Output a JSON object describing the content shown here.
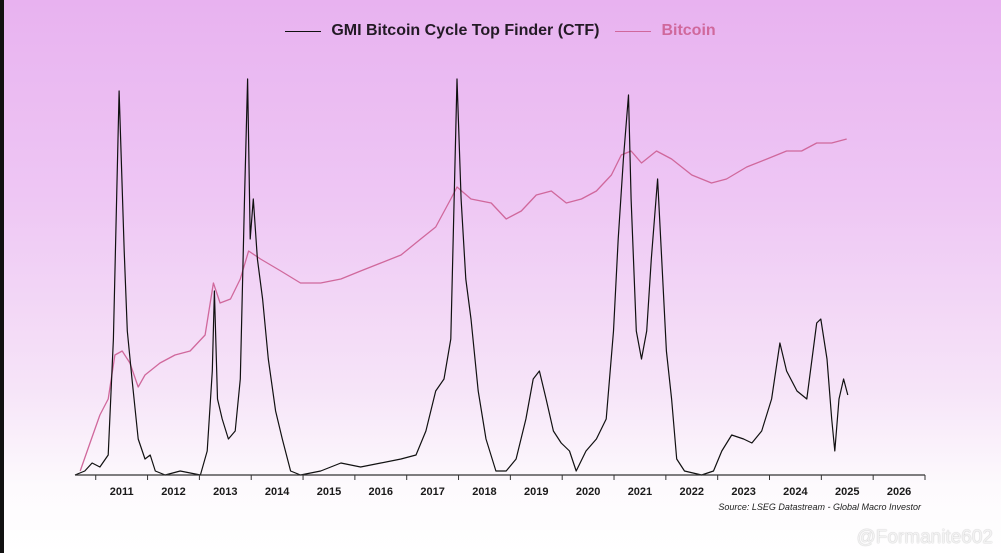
{
  "chart_data": {
    "type": "line",
    "title": "",
    "xlabel": "",
    "ylabel": "",
    "xlim": [
      2010.6,
      2027.0
    ],
    "ylim": [
      0,
      100
    ],
    "grid": false,
    "legend_position": "top-center",
    "x_ticks": [
      "2011",
      "2012",
      "2013",
      "2014",
      "2015",
      "2016",
      "2017",
      "2018",
      "2019",
      "2020",
      "2021",
      "2022",
      "2023",
      "2024",
      "2025",
      "2026"
    ],
    "colors": {
      "ctf": "#111111",
      "bitcoin": "#d0689c"
    },
    "series": [
      {
        "name": "GMI Bitcoin Cycle Top Finder (CTF)",
        "key": "ctf",
        "points": [
          [
            2010.6,
            0
          ],
          [
            2010.79,
            1
          ],
          [
            2010.93,
            3
          ],
          [
            2011.08,
            2
          ],
          [
            2011.24,
            5
          ],
          [
            2011.34,
            34
          ],
          [
            2011.45,
            96
          ],
          [
            2011.55,
            56
          ],
          [
            2011.61,
            36
          ],
          [
            2011.7,
            24
          ],
          [
            2011.82,
            9
          ],
          [
            2011.95,
            4
          ],
          [
            2012.05,
            5
          ],
          [
            2012.15,
            1
          ],
          [
            2012.34,
            0
          ],
          [
            2012.63,
            1
          ],
          [
            2013.02,
            0
          ],
          [
            2013.15,
            6
          ],
          [
            2013.25,
            26
          ],
          [
            2013.29,
            46
          ],
          [
            2013.35,
            19
          ],
          [
            2013.44,
            14
          ],
          [
            2013.56,
            9
          ],
          [
            2013.69,
            11
          ],
          [
            2013.79,
            24
          ],
          [
            2013.87,
            69
          ],
          [
            2013.93,
            99
          ],
          [
            2013.98,
            59
          ],
          [
            2014.04,
            69
          ],
          [
            2014.12,
            54
          ],
          [
            2014.22,
            44
          ],
          [
            2014.33,
            29
          ],
          [
            2014.47,
            16
          ],
          [
            2014.6,
            9
          ],
          [
            2014.76,
            1
          ],
          [
            2014.95,
            0
          ],
          [
            2015.34,
            1
          ],
          [
            2015.73,
            3
          ],
          [
            2016.11,
            2
          ],
          [
            2016.5,
            3
          ],
          [
            2016.89,
            4
          ],
          [
            2017.18,
            5
          ],
          [
            2017.37,
            11
          ],
          [
            2017.56,
            21
          ],
          [
            2017.72,
            24
          ],
          [
            2017.85,
            34
          ],
          [
            2017.97,
            99
          ],
          [
            2018.05,
            69
          ],
          [
            2018.14,
            49
          ],
          [
            2018.24,
            39
          ],
          [
            2018.38,
            21
          ],
          [
            2018.53,
            9
          ],
          [
            2018.72,
            1
          ],
          [
            2018.92,
            1
          ],
          [
            2019.11,
            4
          ],
          [
            2019.3,
            14
          ],
          [
            2019.44,
            24
          ],
          [
            2019.56,
            26
          ],
          [
            2019.69,
            19
          ],
          [
            2019.83,
            11
          ],
          [
            2019.98,
            8
          ],
          [
            2020.14,
            6
          ],
          [
            2020.27,
            1
          ],
          [
            2020.46,
            6
          ],
          [
            2020.66,
            9
          ],
          [
            2020.85,
            14
          ],
          [
            2020.99,
            36
          ],
          [
            2021.08,
            59
          ],
          [
            2021.18,
            79
          ],
          [
            2021.28,
            95
          ],
          [
            2021.33,
            69
          ],
          [
            2021.43,
            36
          ],
          [
            2021.53,
            29
          ],
          [
            2021.63,
            36
          ],
          [
            2021.72,
            54
          ],
          [
            2021.84,
            74
          ],
          [
            2021.92,
            54
          ],
          [
            2022.01,
            31
          ],
          [
            2022.11,
            19
          ],
          [
            2022.21,
            4
          ],
          [
            2022.36,
            1
          ],
          [
            2022.69,
            0
          ],
          [
            2022.92,
            1
          ],
          [
            2023.08,
            6
          ],
          [
            2023.27,
            10
          ],
          [
            2023.5,
            9
          ],
          [
            2023.66,
            8
          ],
          [
            2023.85,
            11
          ],
          [
            2024.04,
            19
          ],
          [
            2024.2,
            33
          ],
          [
            2024.33,
            26
          ],
          [
            2024.53,
            21
          ],
          [
            2024.72,
            19
          ],
          [
            2024.91,
            38
          ],
          [
            2024.99,
            39
          ],
          [
            2025.11,
            29
          ],
          [
            2025.2,
            14
          ],
          [
            2025.26,
            6
          ],
          [
            2025.34,
            19
          ],
          [
            2025.43,
            24
          ],
          [
            2025.51,
            20
          ]
        ]
      },
      {
        "name": "Bitcoin",
        "key": "bitcoin",
        "points": [
          [
            2010.7,
            1
          ],
          [
            2010.89,
            8
          ],
          [
            2011.08,
            15
          ],
          [
            2011.24,
            19
          ],
          [
            2011.37,
            30
          ],
          [
            2011.51,
            31
          ],
          [
            2011.66,
            28
          ],
          [
            2011.82,
            22
          ],
          [
            2011.95,
            25
          ],
          [
            2012.24,
            28
          ],
          [
            2012.53,
            30
          ],
          [
            2012.82,
            31
          ],
          [
            2013.11,
            35
          ],
          [
            2013.27,
            48
          ],
          [
            2013.4,
            43
          ],
          [
            2013.6,
            44
          ],
          [
            2013.79,
            49
          ],
          [
            2013.95,
            56
          ],
          [
            2014.18,
            54
          ],
          [
            2014.57,
            51
          ],
          [
            2014.95,
            48
          ],
          [
            2015.34,
            48
          ],
          [
            2015.73,
            49
          ],
          [
            2016.11,
            51
          ],
          [
            2016.5,
            53
          ],
          [
            2016.89,
            55
          ],
          [
            2017.27,
            59
          ],
          [
            2017.56,
            62
          ],
          [
            2017.85,
            69
          ],
          [
            2017.97,
            72
          ],
          [
            2018.24,
            69
          ],
          [
            2018.63,
            68
          ],
          [
            2018.92,
            64
          ],
          [
            2019.21,
            66
          ],
          [
            2019.5,
            70
          ],
          [
            2019.79,
            71
          ],
          [
            2020.08,
            68
          ],
          [
            2020.37,
            69
          ],
          [
            2020.66,
            71
          ],
          [
            2020.95,
            75
          ],
          [
            2021.14,
            80
          ],
          [
            2021.33,
            81
          ],
          [
            2021.53,
            78
          ],
          [
            2021.82,
            81
          ],
          [
            2022.11,
            79
          ],
          [
            2022.5,
            75
          ],
          [
            2022.88,
            73
          ],
          [
            2023.17,
            74
          ],
          [
            2023.56,
            77
          ],
          [
            2023.95,
            79
          ],
          [
            2024.33,
            81
          ],
          [
            2024.62,
            81
          ],
          [
            2024.91,
            83
          ],
          [
            2025.2,
            83
          ],
          [
            2025.49,
            84
          ]
        ]
      }
    ],
    "source": "Source: LSEG Datastream - Global Macro Investor"
  },
  "watermark": "@Formanite602"
}
